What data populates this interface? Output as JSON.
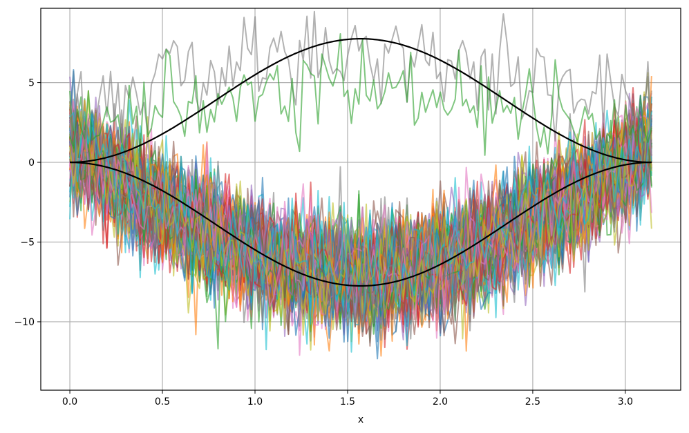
{
  "chart_data": {
    "type": "line",
    "title": "",
    "xlabel": "x",
    "ylabel": "",
    "xlim": [
      -0.157,
      3.299
    ],
    "ylim": [
      -14.29,
      9.66
    ],
    "grid": true,
    "x_ticks": [
      0.0,
      0.5,
      1.0,
      1.5,
      2.0,
      2.5,
      3.0
    ],
    "x_tick_labels": [
      "0.0",
      "0.5",
      "1.0",
      "1.5",
      "2.0",
      "2.5",
      "3.0"
    ],
    "y_ticks": [
      5,
      0,
      -5,
      -10
    ],
    "y_tick_labels": [
      "5",
      "0",
      "−5",
      "−10"
    ],
    "x_range": [
      0.0,
      3.1416
    ],
    "samples_per_path": 158,
    "envelope": {
      "color": "#000000",
      "formula": "y = ± 7.75 · sin(x)^2",
      "amplitude": 7.75
    },
    "upper_paths": [
      {
        "color": "#7f7f7f",
        "mean_amplitude": 6.6,
        "noise": 1.5,
        "offset": 2.2
      },
      {
        "color": "#2ca02c",
        "mean_amplitude": 4.6,
        "noise": 1.4,
        "offset": 1.2
      }
    ],
    "lower_paths": {
      "count": 100,
      "mean_formula": "y = -8 · sin(x) + 1",
      "amplitude": -8.0,
      "offset": 1.0,
      "noise": 1.6,
      "palette": [
        "#1f77b4",
        "#ff7f0e",
        "#2ca02c",
        "#d62728",
        "#9467bd",
        "#8c564b",
        "#e377c2",
        "#7f7f7f",
        "#bcbd22",
        "#17becf"
      ],
      "opacity": 0.6
    }
  }
}
